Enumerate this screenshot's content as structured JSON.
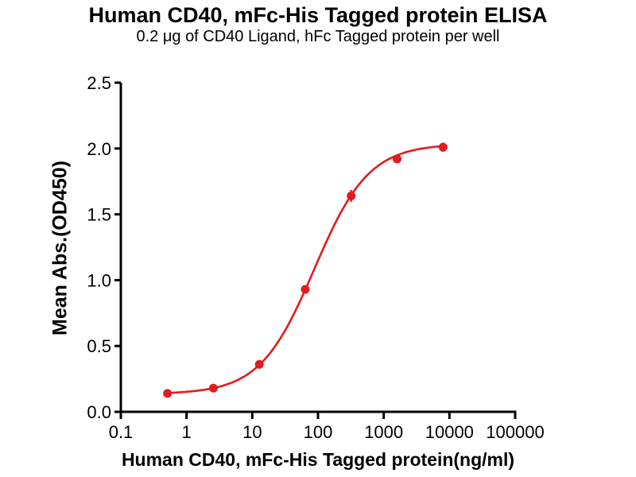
{
  "chart_data": {
    "type": "scatter",
    "title": "Human CD40, mFc-His Tagged protein ELISA",
    "subtitle": "0.2 μg of CD40 Ligand, hFc Tagged protein per well",
    "xlabel": "Human CD40, mFc-His Tagged protein(ng/ml)",
    "ylabel": "Mean Abs.(OD450)",
    "x_scale": "log10",
    "xlim": [
      0.1,
      100000
    ],
    "ylim": [
      0.0,
      2.5
    ],
    "x_ticks": [
      0.1,
      1,
      10,
      100,
      1000,
      10000,
      100000
    ],
    "x_tick_labels": [
      "0.1",
      "1",
      "10",
      "100",
      "1000",
      "10000",
      "100000"
    ],
    "y_ticks": [
      0.0,
      0.5,
      1.0,
      1.5,
      2.0,
      2.5
    ],
    "y_tick_labels": [
      "0.0",
      "0.5",
      "1.0",
      "1.5",
      "2.0",
      "2.5"
    ],
    "grid": false,
    "legend": false,
    "colors": {
      "series": "#e41a1c",
      "axis": "#000000",
      "background": "#ffffff"
    },
    "series": [
      {
        "name": "Human CD40, mFc-His Tagged protein",
        "color": "#e41a1c",
        "x": [
          0.512,
          2.56,
          12.8,
          64,
          320,
          1600,
          8000
        ],
        "y": [
          0.14,
          0.18,
          0.36,
          0.93,
          1.64,
          1.92,
          2.01
        ],
        "y_err": [
          0.01,
          0.01,
          0.015,
          0.02,
          0.045,
          0.015,
          0.035
        ],
        "fit": {
          "model": "4PL",
          "bottom": 0.135,
          "top": 2.035,
          "ec50": 88,
          "hill": 1.05
        }
      }
    ]
  }
}
